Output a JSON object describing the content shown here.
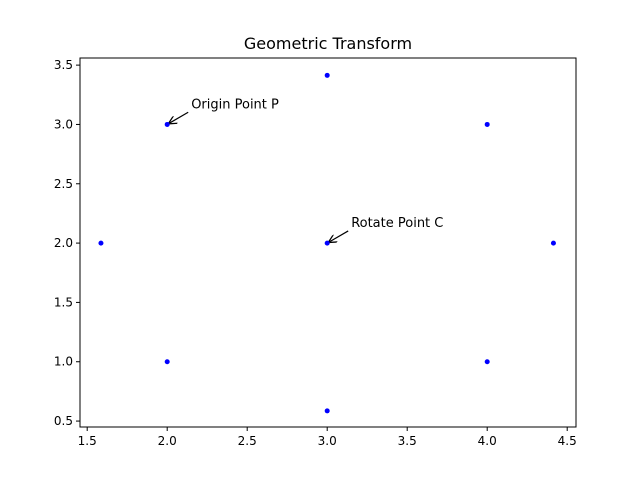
{
  "chart_data": {
    "type": "scatter",
    "title": "Geometric Transform",
    "xlabel": "",
    "ylabel": "",
    "xlim": [
      1.455,
      4.555
    ],
    "ylim": [
      0.45,
      3.56
    ],
    "xticks": [
      1.5,
      2.0,
      2.5,
      3.0,
      3.5,
      4.0,
      4.5
    ],
    "xtick_labels": [
      "1.5",
      "2.0",
      "2.5",
      "3.0",
      "3.5",
      "4.0",
      "4.5"
    ],
    "yticks": [
      0.5,
      1.0,
      1.5,
      2.0,
      2.5,
      3.0,
      3.5
    ],
    "ytick_labels": [
      "0.5",
      "1.0",
      "1.5",
      "2.0",
      "2.5",
      "3.0",
      "3.5"
    ],
    "grid": false,
    "marker_color": "#0000ff",
    "points": [
      {
        "x": 2.0,
        "y": 3.0
      },
      {
        "x": 3.0,
        "y": 3.414
      },
      {
        "x": 4.0,
        "y": 3.0
      },
      {
        "x": 1.586,
        "y": 2.0
      },
      {
        "x": 3.0,
        "y": 2.0
      },
      {
        "x": 4.414,
        "y": 2.0
      },
      {
        "x": 2.0,
        "y": 1.0
      },
      {
        "x": 4.0,
        "y": 1.0
      },
      {
        "x": 3.0,
        "y": 0.586
      }
    ],
    "annotations": [
      {
        "text": "Origin Point P",
        "x": 2.0,
        "y": 3.0,
        "text_x": 2.15,
        "text_y": 3.17
      },
      {
        "text": "Rotate Point C",
        "x": 3.0,
        "y": 2.0,
        "text_x": 3.15,
        "text_y": 2.17
      }
    ]
  }
}
